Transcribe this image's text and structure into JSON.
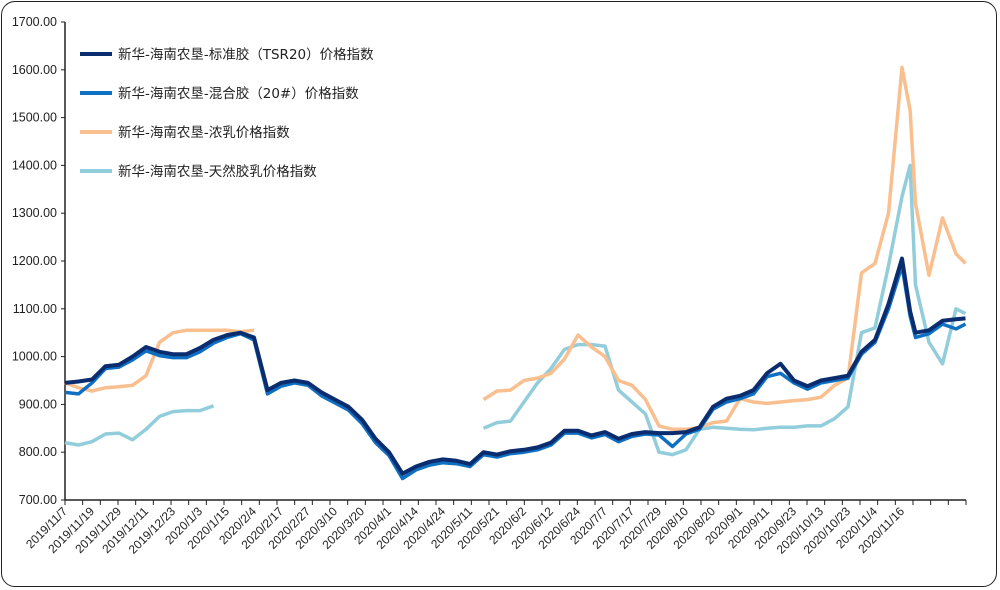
{
  "chart_data": {
    "type": "line",
    "title": "",
    "xlabel": "",
    "ylabel": "",
    "ylim": [
      700,
      1700
    ],
    "yticks": [
      "700.00",
      "800.00",
      "900.00",
      "1000.00",
      "1100.00",
      "1200.00",
      "1300.00",
      "1400.00",
      "1500.00",
      "1600.00",
      "1700.00"
    ],
    "categories": [
      "2019/11/7",
      "2019/11/19",
      "2019/11/29",
      "2019/12/11",
      "2019/12/23",
      "2020/1/3",
      "2020/1/15",
      "2020/2/4",
      "2020/2/17",
      "2020/2/27",
      "2020/3/10",
      "2020/3/20",
      "2020/4/1",
      "2020/4/14",
      "2020/4/24",
      "2020/5/11",
      "2020/5/21",
      "2020/6/2",
      "2020/6/12",
      "2020/6/24",
      "2020/7/7",
      "2020/7/17",
      "2020/7/29",
      "2020/8/10",
      "2020/8/20",
      "2020/9/1",
      "2020/9/11",
      "2020/9/23",
      "2020/10/13",
      "2020/10/23",
      "2020/11/4",
      "2020/11/16"
    ],
    "x_note": "x values are positions in units of the category-label index",
    "x": [
      0,
      0.5,
      1,
      1.5,
      2,
      2.5,
      3,
      3.5,
      4,
      4.5,
      5,
      5.5,
      6,
      6.5,
      7,
      7.5,
      8,
      8.5,
      9,
      9.5,
      10,
      10.5,
      11,
      11.5,
      12,
      12.5,
      13,
      13.5,
      14,
      14.5,
      15,
      15.5,
      16,
      16.5,
      17,
      17.5,
      18,
      18.5,
      19,
      19.5,
      20,
      20.5,
      21,
      21.5,
      22,
      22.5,
      23,
      23.5,
      24,
      24.5,
      25,
      25.5,
      26,
      26.5,
      27,
      27.5,
      28,
      28.5,
      29,
      29.5,
      30,
      30.5,
      31,
      31.3,
      31.5,
      32,
      32.5,
      33,
      33.35
    ],
    "series": [
      {
        "name": "新华-海南农垦-标准胶（TSR20）价格指数",
        "color": "#0b2c6e",
        "values": [
          945,
          948,
          952,
          980,
          983,
          1000,
          1020,
          1010,
          1005,
          1005,
          1018,
          1035,
          1045,
          1050,
          1040,
          930,
          945,
          950,
          945,
          925,
          910,
          895,
          868,
          828,
          800,
          755,
          770,
          780,
          785,
          782,
          775,
          800,
          795,
          802,
          805,
          810,
          820,
          845,
          845,
          835,
          842,
          828,
          838,
          842,
          840,
          840,
          842,
          852,
          895,
          912,
          918,
          930,
          965,
          985,
          950,
          938,
          950,
          955,
          960,
          1010,
          1035,
          1110,
          1205,
          1095,
          1050,
          1055,
          1075,
          1078,
          1080
        ]
      },
      {
        "name": "新华-海南农垦-混合胶（20#）价格指数",
        "color": "#0f6fc0",
        "values": [
          925,
          922,
          945,
          975,
          978,
          993,
          1012,
          1002,
          998,
          998,
          1010,
          1028,
          1040,
          1048,
          1035,
          922,
          938,
          945,
          940,
          918,
          903,
          888,
          860,
          820,
          793,
          745,
          763,
          773,
          778,
          776,
          770,
          795,
          790,
          797,
          800,
          805,
          815,
          840,
          840,
          830,
          837,
          822,
          833,
          838,
          836,
          812,
          838,
          848,
          890,
          905,
          912,
          922,
          958,
          965,
          945,
          932,
          945,
          950,
          955,
          1005,
          1030,
          1100,
          1190,
          1085,
          1040,
          1048,
          1068,
          1058,
          1068
        ]
      },
      {
        "name": "新华-海南农垦-浓乳价格指数",
        "color": "#f9bf8f",
        "values": [
          945,
          935,
          928,
          935,
          937,
          940,
          960,
          1030,
          1050,
          1055,
          1055,
          1055,
          1055,
          1052,
          1055,
          null,
          null,
          null,
          null,
          null,
          null,
          null,
          null,
          null,
          null,
          null,
          null,
          null,
          null,
          null,
          null,
          910,
          928,
          930,
          950,
          955,
          965,
          995,
          1045,
          1020,
          1000,
          950,
          940,
          910,
          855,
          848,
          848,
          852,
          862,
          865,
          912,
          905,
          902,
          905,
          908,
          910,
          915,
          940,
          955,
          1175,
          1195,
          1300,
          1605,
          1515,
          1320,
          1170,
          1290,
          1215,
          1195
        ]
      },
      {
        "name": "新华-海南农垦-天然胶乳价格指数",
        "color": "#92cddc",
        "values": [
          820,
          815,
          822,
          838,
          840,
          826,
          848,
          875,
          885,
          887,
          887,
          897,
          null,
          null,
          null,
          null,
          null,
          null,
          null,
          null,
          null,
          null,
          null,
          null,
          null,
          null,
          null,
          null,
          null,
          null,
          null,
          850,
          862,
          865,
          905,
          945,
          975,
          1015,
          1025,
          1025,
          1022,
          930,
          905,
          880,
          800,
          795,
          805,
          848,
          852,
          850,
          848,
          847,
          850,
          852,
          852,
          855,
          855,
          870,
          895,
          1050,
          1060,
          1190,
          1335,
          1400,
          1150,
          1030,
          985,
          1100,
          1090
        ]
      }
    ],
    "legend_position": "top-left",
    "grid": false
  }
}
